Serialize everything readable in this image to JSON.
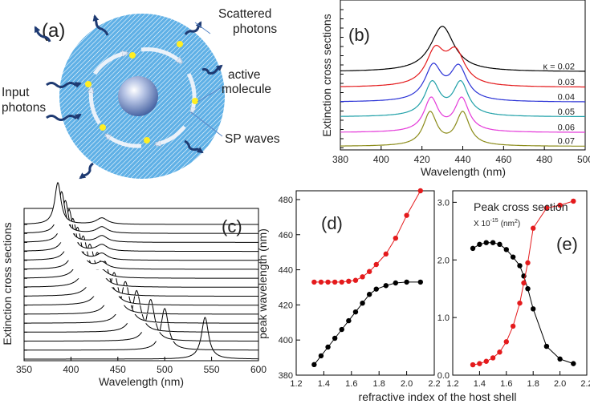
{
  "colors": {
    "black": "#000000",
    "red": "#e41a1c",
    "blue": "#2b33d6",
    "teal": "#1fa0a8",
    "magenta": "#e43ad9",
    "olive": "#8c8c1a",
    "shell": "#4aa3df",
    "molecule": "#ffee22",
    "arrow": "#1e3a72"
  },
  "panel_a": {
    "label": "(a)",
    "annotations": [
      "Scattered photons",
      "active molecule",
      "SP waves",
      "Input photons"
    ],
    "scattered_lines": [
      "Scattered",
      "photons"
    ],
    "active_lines": [
      "active",
      "molecule"
    ],
    "sp_waves": "SP waves",
    "input_lines": [
      "Input",
      "photons"
    ]
  },
  "chart_data": [
    {
      "id": "b",
      "type": "line",
      "label": "(b)",
      "xlabel": "Wavelength  (nm)",
      "ylabel": "Extinction cross sections",
      "xlim": [
        380,
        500
      ],
      "xticks": [
        380,
        400,
        420,
        440,
        460,
        480,
        500
      ],
      "kappa_prefix": "κ = ",
      "series": [
        {
          "name": "0.02",
          "color": "black",
          "offset": 0.81,
          "peaks": [
            [
              430,
              7.0,
              0.82
            ]
          ]
        },
        {
          "name": "0.03",
          "color": "red",
          "offset": 0.64,
          "peaks": [
            [
              426.5,
              5.5,
              0.62
            ],
            [
              436.5,
              5.5,
              0.58
            ]
          ]
        },
        {
          "name": "0.04",
          "color": "blue",
          "offset": 0.48,
          "peaks": [
            [
              425.5,
              5.0,
              0.62
            ],
            [
              438,
              5.0,
              0.6
            ]
          ]
        },
        {
          "name": "0.05",
          "color": "teal",
          "offset": 0.32,
          "peaks": [
            [
              425,
              4.5,
              0.6
            ],
            [
              439,
              4.5,
              0.6
            ]
          ]
        },
        {
          "name": "0.06",
          "color": "magenta",
          "offset": 0.15,
          "peaks": [
            [
              424.5,
              4.2,
              0.6
            ],
            [
              439.5,
              4.2,
              0.6
            ]
          ]
        },
        {
          "name": "0.07",
          "color": "olive",
          "offset": 0.0,
          "peaks": [
            [
              424,
              4.0,
              0.6
            ],
            [
              440,
              4.0,
              0.6
            ]
          ]
        }
      ]
    },
    {
      "id": "c",
      "type": "line",
      "label": "(c)",
      "xlabel": "Wavelength   (nm)",
      "ylabel": "Extinction cross sections",
      "xlim": [
        350,
        600
      ],
      "xticks": [
        350,
        400,
        450,
        500,
        550,
        600
      ],
      "series": [
        {
          "peak": 386,
          "width": 4.0,
          "second": 433
        },
        {
          "peak": 390,
          "width": 4.2,
          "second": 433
        },
        {
          "peak": 394,
          "width": 4.4,
          "second": 433
        },
        {
          "peak": 398,
          "width": 4.6,
          "second": 433
        },
        {
          "peak": 402,
          "width": 4.8,
          "second": 433
        },
        {
          "peak": 407,
          "width": 5.0,
          "second": 433
        },
        {
          "peak": 413,
          "width": 5.5,
          "second": 433
        },
        {
          "peak": 420,
          "width": 6.0,
          "second": 433
        },
        {
          "peak": 428,
          "width": 6.0,
          "second": 438
        },
        {
          "peak": 436,
          "width": 5.8,
          "second": 445
        },
        {
          "peak": 446,
          "width": 5.6,
          "second": 0
        },
        {
          "peak": 458,
          "width": 5.4,
          "second": 0
        },
        {
          "peak": 470,
          "width": 5.2,
          "second": 0
        },
        {
          "peak": 485,
          "width": 5.0,
          "second": 0
        },
        {
          "peak": 500,
          "width": 4.8,
          "second": 0
        },
        {
          "peak": 543,
          "width": 4.6,
          "second": 0
        }
      ]
    },
    {
      "id": "d",
      "type": "line",
      "label": "(d)",
      "ylabel": "peak wavelength  (nm)",
      "xlim": [
        1.2,
        2.2
      ],
      "ylim": [
        380,
        485
      ],
      "xticks": [
        1.2,
        1.4,
        1.6,
        1.8,
        2.0,
        2.2
      ],
      "yticks": [
        380,
        400,
        420,
        440,
        460,
        480
      ],
      "x": [
        1.33,
        1.38,
        1.43,
        1.48,
        1.53,
        1.58,
        1.63,
        1.68,
        1.73,
        1.78,
        1.85,
        1.92,
        2.0,
        2.1
      ],
      "series": [
        {
          "name": "black",
          "values": [
            386,
            391,
            396,
            401,
            406,
            411,
            416,
            421,
            426,
            429,
            431,
            432.5,
            433,
            433
          ]
        },
        {
          "name": "red",
          "values": [
            433,
            433,
            433,
            433,
            433,
            433.5,
            434,
            436,
            439,
            443,
            449,
            458,
            471,
            485
          ]
        }
      ]
    },
    {
      "id": "e",
      "type": "line",
      "label": "(e)",
      "title": "Peak cross section",
      "unit_prefix": "X 10",
      "unit_exp": "-15",
      "unit_main": "(nm",
      "unit_sq": "2",
      "unit_close": ")",
      "xlim": [
        1.2,
        2.2
      ],
      "ylim": [
        0,
        3.2
      ],
      "xticks": [
        1.2,
        1.4,
        1.6,
        1.8,
        2.0,
        2.2
      ],
      "yticks": [
        0.0,
        1.0,
        2.0,
        3.0
      ],
      "ytick_labels": [
        "0.0",
        "1.0",
        "2.0",
        "3.0"
      ],
      "x": [
        1.35,
        1.4,
        1.45,
        1.5,
        1.55,
        1.6,
        1.65,
        1.7,
        1.73,
        1.76,
        1.8,
        1.9,
        2.0,
        2.1
      ],
      "series": [
        {
          "name": "black",
          "values": [
            2.2,
            2.27,
            2.3,
            2.3,
            2.27,
            2.18,
            2.05,
            1.9,
            1.72,
            1.5,
            1.15,
            0.5,
            0.28,
            0.2
          ]
        },
        {
          "name": "red",
          "values": [
            0.18,
            0.2,
            0.24,
            0.3,
            0.4,
            0.58,
            0.85,
            1.25,
            1.6,
            1.95,
            2.55,
            2.9,
            2.95,
            3.02
          ]
        }
      ]
    }
  ],
  "shared": {
    "xlabel_de": "refractive index of the  host shell"
  }
}
